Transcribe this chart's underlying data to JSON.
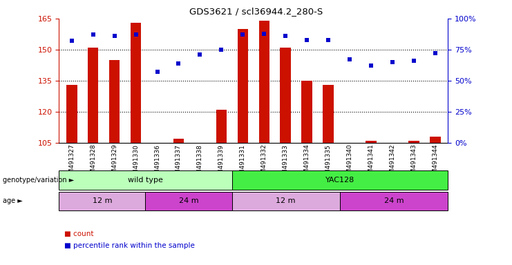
{
  "title": "GDS3621 / scl36944.2_280-S",
  "samples": [
    "GSM491327",
    "GSM491328",
    "GSM491329",
    "GSM491330",
    "GSM491336",
    "GSM491337",
    "GSM491338",
    "GSM491339",
    "GSM491331",
    "GSM491332",
    "GSM491333",
    "GSM491334",
    "GSM491335",
    "GSM491340",
    "GSM491341",
    "GSM491342",
    "GSM491343",
    "GSM491344"
  ],
  "counts": [
    133,
    151,
    145,
    163,
    105,
    107,
    105,
    121,
    160,
    164,
    151,
    135,
    133,
    105,
    106,
    105,
    106,
    108
  ],
  "percentiles": [
    82,
    87,
    86,
    87,
    57,
    64,
    71,
    75,
    87,
    88,
    86,
    83,
    83,
    67,
    62,
    65,
    66,
    72
  ],
  "ylim_left": [
    105,
    165
  ],
  "ylim_right": [
    0,
    100
  ],
  "yticks_left": [
    105,
    120,
    135,
    150,
    165
  ],
  "yticks_right": [
    0,
    25,
    50,
    75,
    100
  ],
  "bar_color": "#cc1100",
  "dot_color": "#0000cc",
  "grid_color": "#000000",
  "genotype_groups": [
    {
      "label": "wild type",
      "start": 0,
      "end": 8,
      "color": "#bbffbb"
    },
    {
      "label": "YAC128",
      "start": 8,
      "end": 18,
      "color": "#44ee44"
    }
  ],
  "age_groups": [
    {
      "label": "12 m",
      "start": 0,
      "end": 4,
      "color": "#ddaadd"
    },
    {
      "label": "24 m",
      "start": 4,
      "end": 8,
      "color": "#cc44cc"
    },
    {
      "label": "12 m",
      "start": 8,
      "end": 13,
      "color": "#ddaadd"
    },
    {
      "label": "24 m",
      "start": 13,
      "end": 18,
      "color": "#cc44cc"
    }
  ],
  "legend_items": [
    {
      "label": "count",
      "color": "#cc1100"
    },
    {
      "label": "percentile rank within the sample",
      "color": "#0000cc"
    }
  ],
  "row_labels": [
    "genotype/variation",
    "age"
  ],
  "bar_width": 0.5,
  "dot_size": 18
}
